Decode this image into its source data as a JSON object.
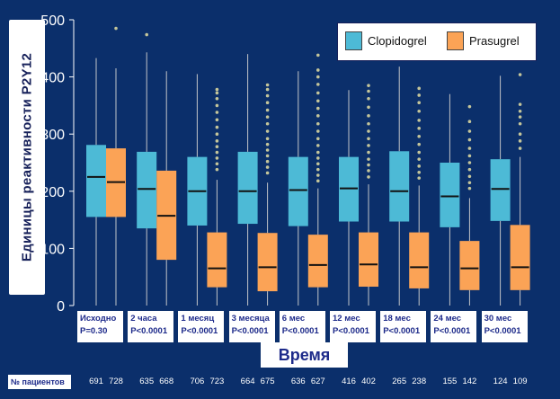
{
  "colors": {
    "background": "#0b2f6b",
    "clopidogrel": "#4dbad6",
    "prasugrel": "#fba356",
    "outlier": "#c4c59a",
    "whisker": "#c2c4c8"
  },
  "chart_data": {
    "type": "box",
    "ylabel": "Единицы реактивности P2Y12",
    "xlabel": "Время",
    "ylim": [
      0,
      500
    ],
    "yticks": [
      0,
      100,
      200,
      300,
      400,
      500
    ],
    "legend_position": "top-right",
    "series_names": [
      "Clopidogrel",
      "Prasugrel"
    ],
    "categories": [
      {
        "label": "Исходно",
        "pvalue": "P=0.30"
      },
      {
        "label": "2 часа",
        "pvalue": "P<0.0001"
      },
      {
        "label": "1 месяц",
        "pvalue": "P<0.0001"
      },
      {
        "label": "3 месяца",
        "pvalue": "P<0.0001"
      },
      {
        "label": "6 мес",
        "pvalue": "P<0.0001"
      },
      {
        "label": "12 мес",
        "pvalue": "P<0.0001"
      },
      {
        "label": "18 мес",
        "pvalue": "P<0.0001"
      },
      {
        "label": "24 мес",
        "pvalue": "P<0.0001"
      },
      {
        "label": "30 мес",
        "pvalue": "P<0.0001"
      }
    ],
    "series": [
      {
        "name": "Clopidogrel",
        "boxes": [
          {
            "min": 0,
            "q1": 155,
            "median": 225,
            "q3": 281,
            "max": 433,
            "outliers": []
          },
          {
            "min": 0,
            "q1": 135,
            "median": 204,
            "q3": 269,
            "max": 443,
            "outliers": [
              474
            ]
          },
          {
            "min": 0,
            "q1": 140,
            "median": 200,
            "q3": 260,
            "max": 405,
            "outliers": []
          },
          {
            "min": 0,
            "q1": 143,
            "median": 200,
            "q3": 269,
            "max": 440,
            "outliers": []
          },
          {
            "min": 0,
            "q1": 139,
            "median": 202,
            "q3": 260,
            "max": 410,
            "outliers": []
          },
          {
            "min": 0,
            "q1": 147,
            "median": 205,
            "q3": 260,
            "max": 377,
            "outliers": []
          },
          {
            "min": 0,
            "q1": 147,
            "median": 200,
            "q3": 270,
            "max": 418,
            "outliers": []
          },
          {
            "min": 0,
            "q1": 137,
            "median": 191,
            "q3": 250,
            "max": 370,
            "outliers": []
          },
          {
            "min": 0,
            "q1": 148,
            "median": 204,
            "q3": 256,
            "max": 402,
            "outliers": []
          }
        ]
      },
      {
        "name": "Prasugrel",
        "boxes": [
          {
            "min": 0,
            "q1": 155,
            "median": 216,
            "q3": 275,
            "max": 415,
            "outliers": [
              485
            ]
          },
          {
            "min": 0,
            "q1": 80,
            "median": 157,
            "q3": 236,
            "max": 410,
            "outliers": []
          },
          {
            "min": 0,
            "q1": 32,
            "median": 65,
            "q3": 128,
            "max": 220,
            "outliers": [
              238,
              248,
              258,
              268,
              278,
              288,
              300,
              312,
              325,
              338,
              350,
              362,
              372,
              378
            ]
          },
          {
            "min": 0,
            "q1": 25,
            "median": 67,
            "q3": 127,
            "max": 215,
            "outliers": [
              232,
              242,
              252,
              262,
              272,
              282,
              292,
              305,
              318,
              330,
              342,
              355,
              367,
              378,
              386
            ]
          },
          {
            "min": 0,
            "q1": 32,
            "median": 71,
            "q3": 124,
            "max": 205,
            "outliers": [
              218,
              228,
              238,
              248,
              258,
              268,
              280,
              292,
              305,
              318,
              332,
              345,
              358,
              372,
              387,
              400,
              412,
              438
            ]
          },
          {
            "min": 0,
            "q1": 33,
            "median": 72,
            "q3": 128,
            "max": 212,
            "outliers": [
              225,
              236,
              246,
              256,
              268,
              280,
              292,
              305,
              318,
              332,
              347,
              362,
              375,
              385
            ]
          },
          {
            "min": 0,
            "q1": 30,
            "median": 67,
            "q3": 128,
            "max": 210,
            "outliers": [
              223,
              233,
              244,
              256,
              268,
              282,
              296,
              310,
              324,
              340,
              355,
              368,
              380
            ]
          },
          {
            "min": 0,
            "q1": 27,
            "median": 65,
            "q3": 113,
            "max": 188,
            "outliers": [
              205,
              215,
              226,
              238,
              250,
              262,
              275,
              290,
              305,
              322,
              348
            ]
          },
          {
            "min": 0,
            "q1": 27,
            "median": 67,
            "q3": 141,
            "max": 260,
            "outliers": [
              275,
              288,
              300,
              318,
              330,
              340,
              352,
              404
            ]
          }
        ]
      }
    ]
  },
  "patients": {
    "label": "№ пациентов",
    "counts": [
      [
        "691",
        "728"
      ],
      [
        "635",
        "668"
      ],
      [
        "706",
        "723"
      ],
      [
        "664",
        "675"
      ],
      [
        "636",
        "627"
      ],
      [
        "416",
        "402"
      ],
      [
        "265",
        "238"
      ],
      [
        "155",
        "142"
      ],
      [
        "124",
        "109"
      ]
    ]
  }
}
